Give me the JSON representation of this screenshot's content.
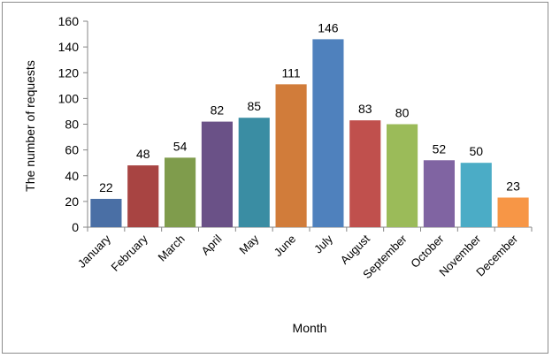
{
  "chart_data": {
    "type": "bar",
    "categories": [
      "January",
      "February",
      "March",
      "April",
      "May",
      "June",
      "July",
      "August",
      "September",
      "October",
      "November",
      "December"
    ],
    "values": [
      22,
      48,
      54,
      82,
      85,
      111,
      146,
      83,
      80,
      52,
      50,
      23
    ],
    "colors": [
      "#4a6fa5",
      "#a84442",
      "#7f9c4c",
      "#6a5187",
      "#3a8da3",
      "#d17c3a",
      "#4f81bd",
      "#c0504d",
      "#9bbb59",
      "#8064a2",
      "#4bacc6",
      "#f79646"
    ],
    "xlabel": "Month",
    "ylabel": "The number of requests",
    "ylim": [
      0,
      160
    ],
    "yticks": [
      0,
      20,
      40,
      60,
      80,
      100,
      120,
      140,
      160
    ],
    "data_labels": true,
    "grid": false,
    "legend": "none"
  }
}
